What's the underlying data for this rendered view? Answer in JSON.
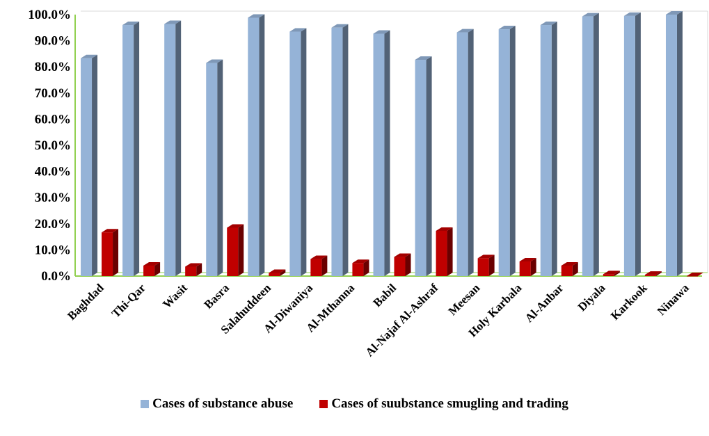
{
  "chart_data": {
    "type": "bar",
    "categories": [
      "Baghdad",
      "Thi-Qar",
      "Wasit",
      "Basra",
      "Salahuddeen",
      "Al-Diwaniya",
      "Al-Mthanna",
      "Babil",
      "Al-Najaf Al-Ashraf",
      "Meesan",
      "Holy Karbala",
      "Al-Anbar",
      "Diyala",
      "Karkook",
      "Ninawa"
    ],
    "series": [
      {
        "name": "Cases of substance abuse",
        "color": "#95b3d7",
        "values": [
          83.3,
          96.0,
          96.4,
          81.5,
          98.8,
          93.5,
          95.0,
          92.7,
          82.7,
          93.2,
          94.4,
          96.0,
          99.3,
          99.5,
          100.0
        ]
      },
      {
        "name": "Cases of suubstance smugling and trading",
        "color": "#c00000",
        "values": [
          16.7,
          4.0,
          3.6,
          18.5,
          1.2,
          6.5,
          5.0,
          7.3,
          17.3,
          6.8,
          5.6,
          4.0,
          0.7,
          0.5,
          0.0
        ]
      }
    ],
    "y_ticks": [
      "0.0%",
      "10.0%",
      "20.0%",
      "30.0%",
      "40.0%",
      "50.0%",
      "60.0%",
      "70.0%",
      "80.0%",
      "90.0%",
      "100.0%"
    ],
    "ylim": [
      0,
      100
    ],
    "grid": false,
    "legend_position": "bottom",
    "axis_color": "#92d050"
  }
}
